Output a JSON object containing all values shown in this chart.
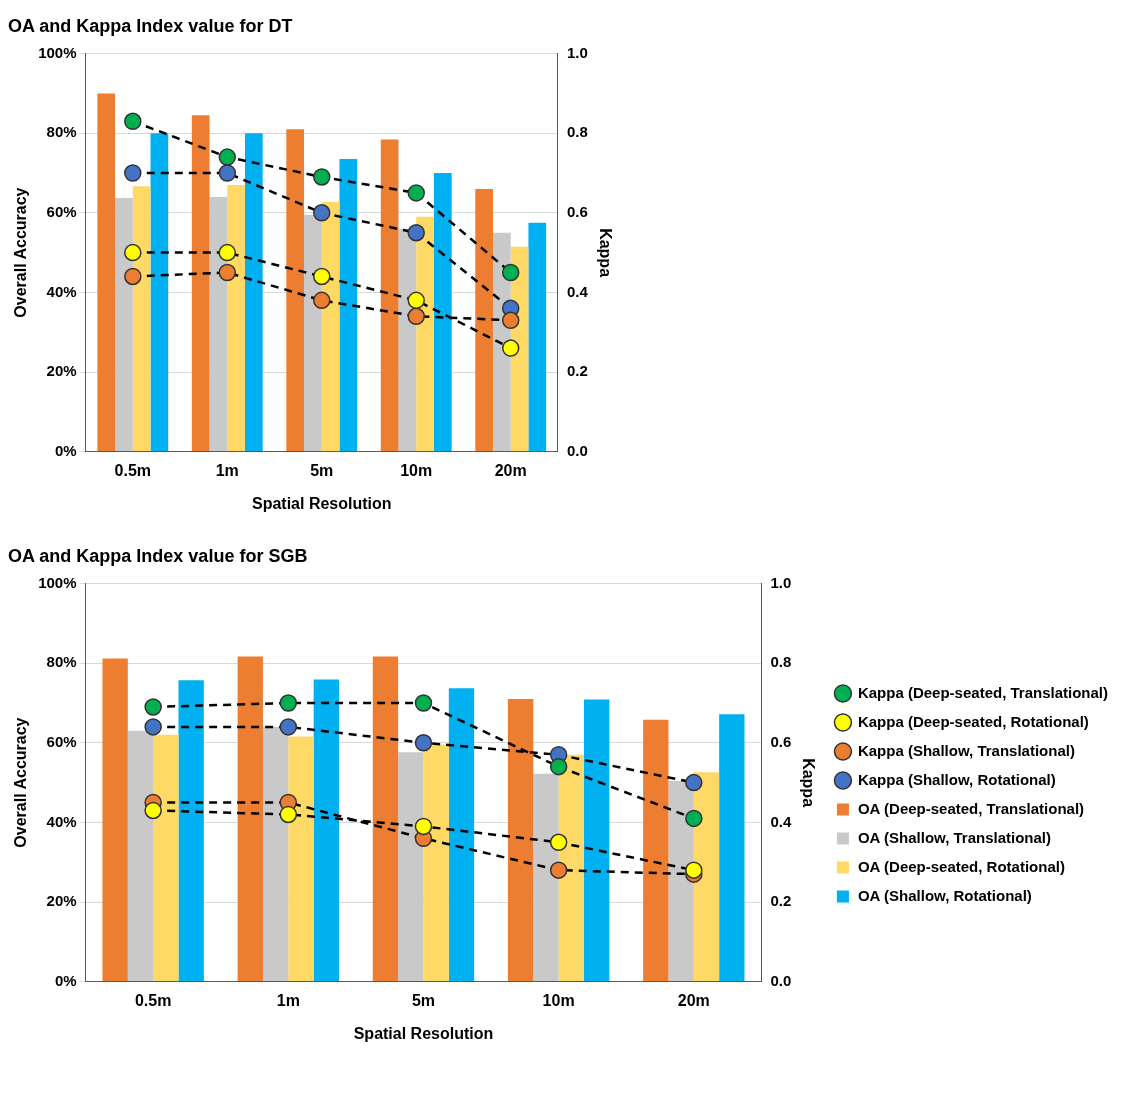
{
  "chart_data": [
    {
      "type": "bar",
      "title": "OA and Kappa Index value for DT",
      "xlabel": "Spatial Resolution",
      "ylabel": "Overall Accuracy",
      "y2label": "Kappa",
      "categories": [
        "0.5m",
        "1m",
        "5m",
        "10m",
        "20m"
      ],
      "ylim": [
        0,
        100
      ],
      "yticks": [
        {
          "value": 0,
          "label": "0%"
        },
        {
          "value": 20,
          "label": "20%"
        },
        {
          "value": 40,
          "label": "40%"
        },
        {
          "value": 60,
          "label": "60%"
        },
        {
          "value": 80,
          "label": "80%"
        },
        {
          "value": 100,
          "label": "100%"
        }
      ],
      "y2lim": [
        0,
        1
      ],
      "y2ticks": [
        {
          "value": 0,
          "label": "0.0"
        },
        {
          "value": 0.2,
          "label": "0.2"
        },
        {
          "value": 0.4,
          "label": "0.4"
        },
        {
          "value": 0.6,
          "label": "0.6"
        },
        {
          "value": 0.8,
          "label": "0.8"
        },
        {
          "value": 1,
          "label": "1.0"
        }
      ],
      "grid": "y",
      "legend": false,
      "marker": "circle",
      "line_style": "dashed",
      "series": [
        {
          "color": "#ed7d31",
          "values": [
            90,
            84.5,
            81,
            78.4,
            66
          ]
        },
        {
          "color": "#c9c9c9",
          "values": [
            63.7,
            64,
            59.5,
            56,
            55
          ]
        },
        {
          "color": "#ffd966",
          "values": [
            66.7,
            67,
            62.7,
            59,
            51.5
          ]
        },
        {
          "color": "#00b0f0",
          "values": [
            80,
            80,
            73.5,
            70,
            57.5
          ]
        },
        {
          "type": "line",
          "axis": "y2",
          "color": "#00b050",
          "values": [
            0.83,
            0.74,
            0.69,
            0.65,
            0.45
          ]
        },
        {
          "type": "line",
          "axis": "y2",
          "color": "#ffff00",
          "values": [
            0.5,
            0.5,
            0.44,
            0.38,
            0.26
          ]
        },
        {
          "type": "line",
          "axis": "y2",
          "color": "#ed7d31",
          "values": [
            0.44,
            0.45,
            0.38,
            0.34,
            0.33
          ]
        },
        {
          "type": "line",
          "axis": "y2",
          "color": "#4472c4",
          "values": [
            0.7,
            0.7,
            0.6,
            0.55,
            0.36
          ]
        }
      ]
    },
    {
      "type": "bar",
      "title": "OA and Kappa Index value for SGB",
      "xlabel": "Spatial Resolution",
      "ylabel": "Overall Accuracy",
      "y2label": "Kappa",
      "categories": [
        "0.5m",
        "1m",
        "5m",
        "10m",
        "20m"
      ],
      "ylim": [
        0,
        100
      ],
      "yticks": [
        {
          "value": 0,
          "label": "0%"
        },
        {
          "value": 20,
          "label": "20%"
        },
        {
          "value": 40,
          "label": "40%"
        },
        {
          "value": 60,
          "label": "60%"
        },
        {
          "value": 80,
          "label": "80%"
        },
        {
          "value": 100,
          "label": "100%"
        }
      ],
      "y2lim": [
        0,
        1
      ],
      "y2ticks": [
        {
          "value": 0,
          "label": "0.0"
        },
        {
          "value": 0.2,
          "label": "0.2"
        },
        {
          "value": 0.4,
          "label": "0.4"
        },
        {
          "value": 0.6,
          "label": "0.6"
        },
        {
          "value": 0.8,
          "label": "0.8"
        },
        {
          "value": 1,
          "label": "1.0"
        }
      ],
      "grid": "y",
      "legend": "right",
      "marker": "circle",
      "line_style": "dashed",
      "series": [
        {
          "name": "OA (Deep-seated, Translational)",
          "color": "#ed7d31",
          "values": [
            81.2,
            81.7,
            81.7,
            71,
            65.8
          ]
        },
        {
          "name": "OA (Shallow, Translational)",
          "color": "#c9c9c9",
          "values": [
            63,
            64,
            57.6,
            52.2,
            50.4
          ]
        },
        {
          "name": "OA (Deep-seated, Rotational)",
          "color": "#ffd966",
          "values": [
            62,
            61.6,
            59.6,
            57,
            52.6
          ]
        },
        {
          "name": "OA (Shallow, Rotational)",
          "color": "#00b0f0",
          "values": [
            75.7,
            75.9,
            73.7,
            70.9,
            67.2
          ]
        },
        {
          "name": "Kappa (Deep-seated, Translational)",
          "type": "line",
          "axis": "y2",
          "color": "#00b050",
          "values": [
            0.69,
            0.7,
            0.7,
            0.54,
            0.41
          ]
        },
        {
          "name": "Kappa (Deep-seated, Rotational)",
          "type": "line",
          "axis": "y2",
          "color": "#ffff00",
          "values": [
            0.43,
            0.42,
            0.39,
            0.35,
            0.28
          ]
        },
        {
          "name": "Kappa (Shallow, Translational)",
          "type": "line",
          "axis": "y2",
          "color": "#ed7d31",
          "values": [
            0.45,
            0.45,
            0.36,
            0.28,
            0.27
          ]
        },
        {
          "name": "Kappa (Shallow, Rotational)",
          "type": "line",
          "axis": "y2",
          "color": "#4472c4",
          "values": [
            0.64,
            0.64,
            0.6,
            0.57,
            0.5
          ]
        }
      ]
    }
  ]
}
